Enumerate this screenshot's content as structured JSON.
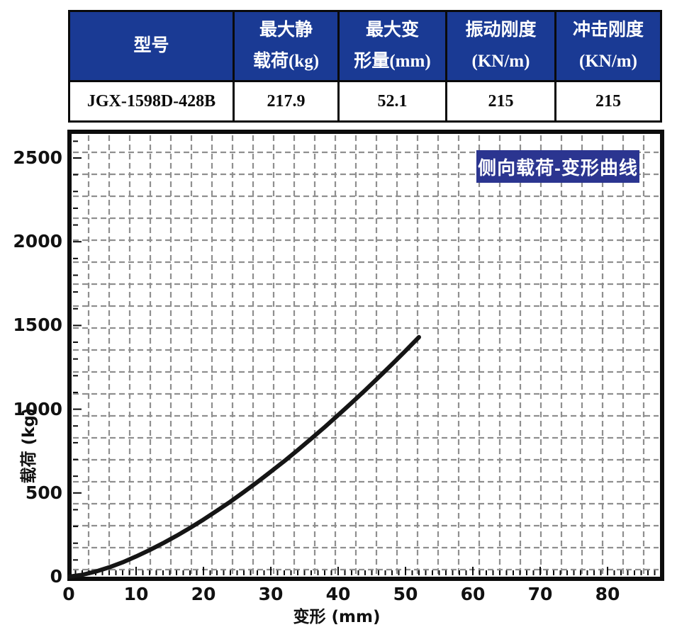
{
  "table": {
    "headers": [
      "型号",
      "最大静\n载荷(kg)",
      "最大变\n形量(mm)",
      "振动刚度\n(KN/m)",
      "冲击刚度\n(KN/m)"
    ],
    "row": [
      "JGX-1598D-428B",
      "217.9",
      "52.1",
      "215",
      "215"
    ]
  },
  "chart_data": {
    "type": "line",
    "title": "侧向载荷-变形曲线",
    "xlabel": "变形 (mm)",
    "ylabel": "载荷 (kg)",
    "xlim": [
      0,
      87
    ],
    "ylim": [
      0,
      2640
    ],
    "xticks": [
      0,
      10,
      20,
      30,
      40,
      50,
      60,
      70,
      80
    ],
    "yticks": [
      0,
      500,
      1000,
      1500,
      2000,
      2500
    ],
    "minor_tick_step_x": 1,
    "minor_tick_step_y": 100,
    "grid": "dashed",
    "legend_position": "top-right",
    "series": [
      {
        "name": "侧向载荷-变形曲线",
        "x": [
          0,
          2,
          4,
          6,
          8,
          10,
          12,
          14,
          16,
          18,
          20,
          22,
          24,
          26,
          28,
          30,
          32,
          34,
          36,
          38,
          40,
          42,
          44,
          46,
          48,
          50,
          52
        ],
        "y": [
          0,
          11,
          31,
          56,
          86,
          121,
          159,
          200,
          244,
          291,
          341,
          394,
          448,
          506,
          565,
          627,
          690,
          756,
          824,
          893,
          965,
          1038,
          1113,
          1190,
          1268,
          1348,
          1430
        ]
      }
    ]
  },
  "colors": {
    "table_header_bg": "#1a3a94",
    "legend_bg": "#2b3590",
    "curve": "#151515",
    "grid": "#8f8f8f",
    "axis": "#0d0d0d"
  }
}
